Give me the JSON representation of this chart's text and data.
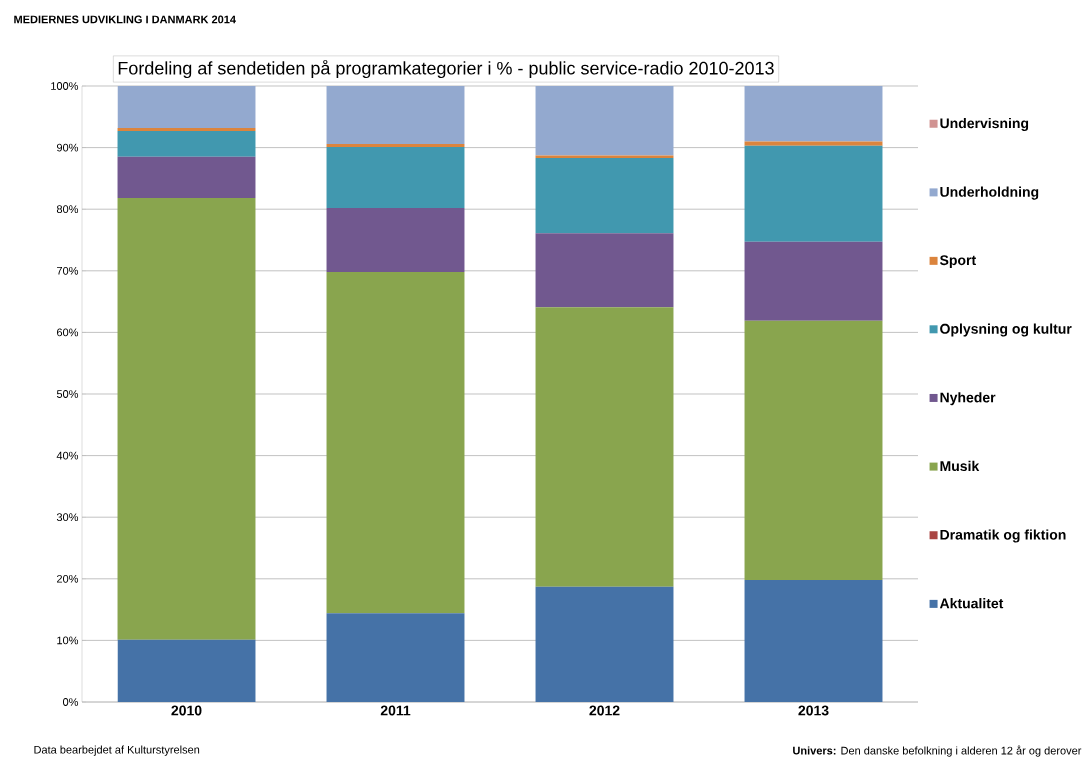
{
  "chart_data": {
    "type": "bar",
    "stacked": true,
    "title": "Fordeling af sendetiden på programkategorier i % - public service-radio 2010-2013",
    "subtitle": "MEDIERNES UDVIKLING I DANMARK 2014",
    "categories": [
      "2010",
      "2011",
      "2012",
      "2013"
    ],
    "series": [
      {
        "name": "Aktualitet",
        "color": "#4572a7",
        "values": [
          10.1,
          14.4,
          18.7,
          19.8
        ]
      },
      {
        "name": "Dramatik og fiktion",
        "color": "#aa4643",
        "values": [
          0,
          0,
          0,
          0
        ]
      },
      {
        "name": "Musik",
        "color": "#89a54e",
        "values": [
          71.7,
          55.4,
          45.4,
          42.1
        ]
      },
      {
        "name": "Nyheder",
        "color": "#71588f",
        "values": [
          6.7,
          10.4,
          12.0,
          12.8
        ]
      },
      {
        "name": "Oplysning og kultur",
        "color": "#4198af",
        "values": [
          4.2,
          9.9,
          12.2,
          15.6
        ]
      },
      {
        "name": "Sport",
        "color": "#db843d",
        "values": [
          0.5,
          0.5,
          0.4,
          0.7
        ]
      },
      {
        "name": "Underholdning",
        "color": "#93a9cf",
        "values": [
          6.8,
          9.4,
          11.3,
          9.0
        ]
      },
      {
        "name": "Undervisning",
        "color": "#d19392",
        "values": [
          0,
          0,
          0,
          0
        ]
      }
    ],
    "ylim": [
      0,
      100
    ],
    "yticks": [
      {
        "value": 0,
        "label": "0%"
      },
      {
        "value": 10,
        "label": "10%"
      },
      {
        "value": 20,
        "label": "20%"
      },
      {
        "value": 30,
        "label": "30%"
      },
      {
        "value": 40,
        "label": "40%"
      },
      {
        "value": 50,
        "label": "50%"
      },
      {
        "value": 60,
        "label": "60%"
      },
      {
        "value": 70,
        "label": "70%"
      },
      {
        "value": 80,
        "label": "80%"
      },
      {
        "value": 90,
        "label": "90%"
      },
      {
        "value": 100,
        "label": "100%"
      }
    ],
    "grid": "y",
    "legend": "right",
    "annotations": [
      "Data bearbejdet af Kulturstyrelsen",
      "**Univers:** Den danske befolkning i alderen 12 år og derover"
    ]
  }
}
